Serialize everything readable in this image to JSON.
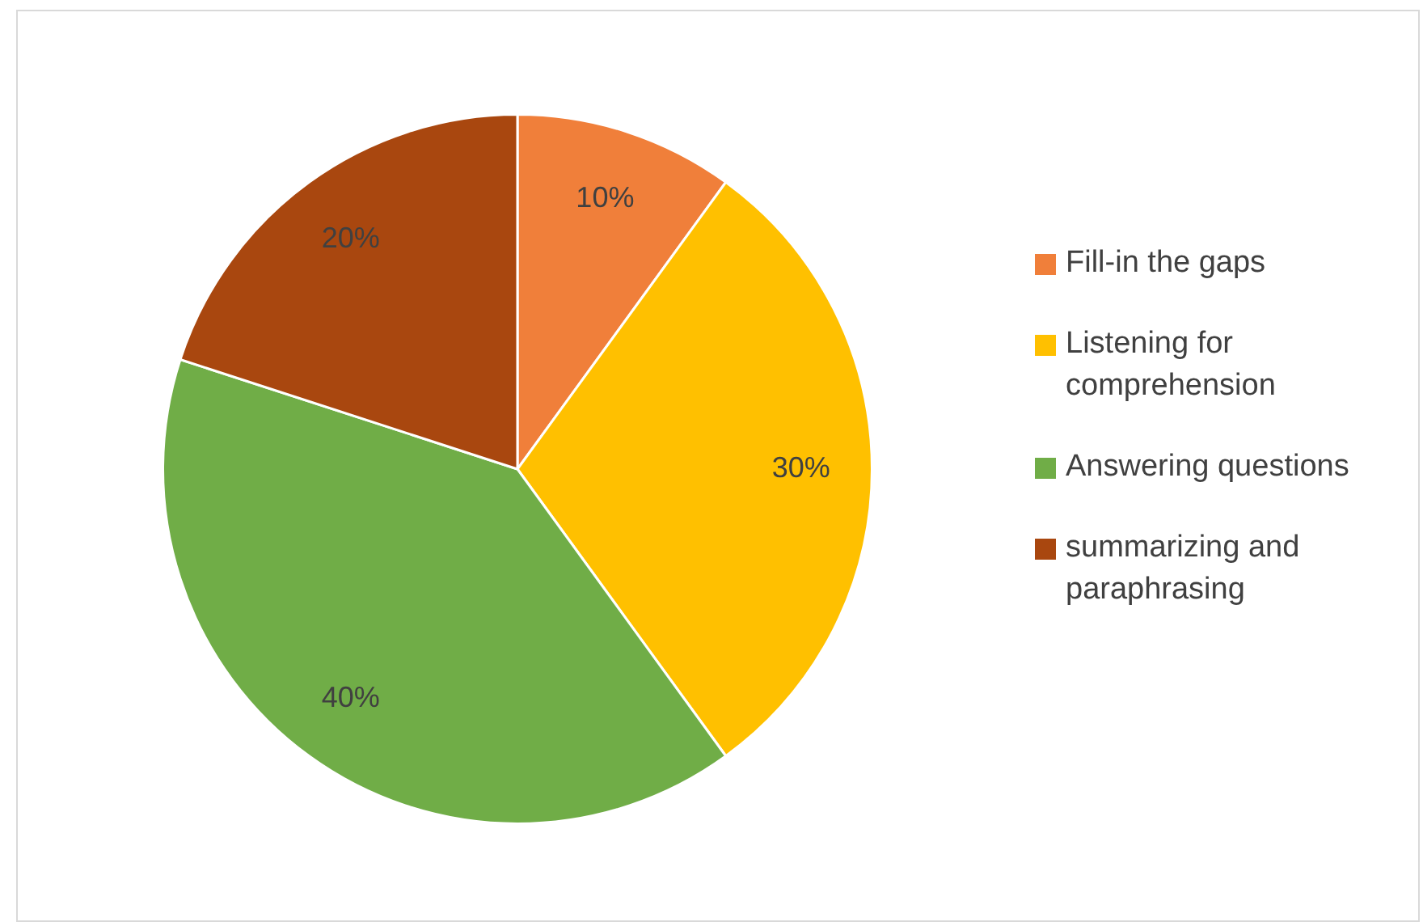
{
  "chart_data": {
    "type": "pie",
    "categories": [
      "Fill-in the gaps",
      "Listening for comprehension",
      "Answering questions",
      "summarizing and paraphrasing"
    ],
    "values": [
      10,
      30,
      40,
      20
    ],
    "colors": [
      "#f07f3a",
      "#ffc000",
      "#70ad47",
      "#a9470f"
    ],
    "value_labels": [
      "10%",
      "30%",
      "40%",
      "20%"
    ],
    "legend": "right"
  }
}
